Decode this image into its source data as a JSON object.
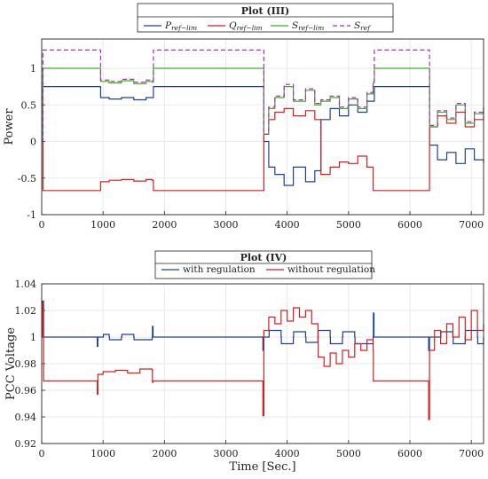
{
  "chart_data": [
    {
      "type": "line",
      "title": "Plot (III)",
      "ylabel": "Power",
      "xlabel": "",
      "xlim": [
        0,
        7200
      ],
      "ylim": [
        -1,
        1.4
      ],
      "xticks": [
        "0",
        "1000",
        "2000",
        "3000",
        "4000",
        "5000",
        "6000",
        "7000"
      ],
      "yticks": [
        "-1",
        "-0.5",
        "0",
        "0.5",
        "1"
      ],
      "grid": true,
      "legend_position": "top-center",
      "series": [
        {
          "name": "P",
          "sub": "ref−lim",
          "color": "#1f3f9e",
          "dash": false,
          "x": [
            0,
            20,
            900,
            960,
            1100,
            1300,
            1500,
            1700,
            1800,
            1820,
            3600,
            3620,
            3700,
            3800,
            3950,
            4100,
            4300,
            4450,
            4550,
            4700,
            4850,
            5000,
            5150,
            5300,
            5400,
            5420,
            6300,
            6320,
            6450,
            6600,
            6750,
            6900,
            7050,
            7200
          ],
          "y": [
            0,
            0.75,
            0.75,
            0.6,
            0.58,
            0.6,
            0.57,
            0.6,
            0.6,
            0.75,
            0.75,
            0,
            -0.35,
            -0.45,
            -0.6,
            -0.35,
            -0.55,
            -0.4,
            0.3,
            0.45,
            0.35,
            0.5,
            0.4,
            0.55,
            0.55,
            0.75,
            0.75,
            -0.05,
            -0.25,
            -0.15,
            -0.3,
            -0.1,
            -0.25,
            -0.3
          ]
        },
        {
          "name": "Q",
          "sub": "ref−lim",
          "color": "#d62020",
          "dash": false,
          "x": [
            0,
            20,
            900,
            960,
            1100,
            1300,
            1500,
            1700,
            1800,
            1820,
            3600,
            3620,
            3700,
            3800,
            3950,
            4100,
            4300,
            4450,
            4550,
            4700,
            4850,
            5000,
            5150,
            5300,
            5400,
            5420,
            6300,
            6320,
            6450,
            6600,
            6750,
            6900,
            7050,
            7200
          ],
          "y": [
            0,
            -0.67,
            -0.67,
            -0.55,
            -0.53,
            -0.52,
            -0.54,
            -0.52,
            -0.53,
            -0.67,
            -0.67,
            0.1,
            0.3,
            0.4,
            0.45,
            0.35,
            0.42,
            0.3,
            -0.45,
            -0.35,
            -0.28,
            -0.3,
            -0.2,
            -0.35,
            -0.67,
            -0.67,
            -0.67,
            0.2,
            0.35,
            0.25,
            0.4,
            0.2,
            0.3,
            0.35
          ]
        },
        {
          "name": "S",
          "sub": "ref−lim",
          "color": "#3cb028",
          "dash": false,
          "x": [
            0,
            20,
            900,
            960,
            1100,
            1300,
            1500,
            1700,
            1800,
            1820,
            3600,
            3620,
            3700,
            3800,
            3950,
            4100,
            4300,
            4450,
            4550,
            4700,
            4850,
            5000,
            5150,
            5300,
            5400,
            5420,
            6300,
            6320,
            6450,
            6600,
            6750,
            6900,
            7050,
            7200
          ],
          "y": [
            0,
            1.0,
            1.0,
            0.82,
            0.8,
            0.83,
            0.79,
            0.82,
            0.81,
            1.0,
            1.0,
            0.1,
            0.45,
            0.6,
            0.75,
            0.55,
            0.7,
            0.5,
            0.55,
            0.6,
            0.45,
            0.58,
            0.45,
            0.65,
            0.8,
            1.0,
            1.0,
            0.2,
            0.4,
            0.3,
            0.5,
            0.25,
            0.38,
            0.45
          ]
        },
        {
          "name": "S",
          "sub": "ref",
          "color": "#b02cb0",
          "dash": true,
          "x": [
            0,
            20,
            900,
            960,
            1100,
            1300,
            1500,
            1700,
            1800,
            1820,
            3600,
            3620,
            3700,
            3800,
            3950,
            4100,
            4300,
            4450,
            4550,
            4700,
            4850,
            5000,
            5150,
            5300,
            5400,
            5420,
            6300,
            6320,
            6450,
            6600,
            6750,
            6900,
            7050,
            7200
          ],
          "y": [
            0,
            1.25,
            1.25,
            0.84,
            0.82,
            0.85,
            0.81,
            0.84,
            0.83,
            1.25,
            1.25,
            0.1,
            0.47,
            0.62,
            0.78,
            0.57,
            0.72,
            0.52,
            0.57,
            0.62,
            0.47,
            0.6,
            0.47,
            0.67,
            0.82,
            1.25,
            1.25,
            0.22,
            0.42,
            0.32,
            0.52,
            0.27,
            0.4,
            0.47
          ]
        }
      ]
    },
    {
      "type": "line",
      "title": "Plot (IV)",
      "ylabel": "PCC Voltage",
      "xlabel": "Time [Sec.]",
      "xlim": [
        0,
        7200
      ],
      "ylim": [
        0.92,
        1.04
      ],
      "xticks": [
        "0",
        "1000",
        "2000",
        "3000",
        "4000",
        "5000",
        "6000",
        "7000"
      ],
      "yticks": [
        "0.92",
        "0.94",
        "0.96",
        "0.98",
        "1",
        "1.02",
        "1.04"
      ],
      "grid": true,
      "legend_position": "top-center",
      "series": [
        {
          "name": "with regulation",
          "color": "#1f3f9e",
          "dash": false,
          "x": [
            0,
            10,
            30,
            900,
            905,
            915,
            1000,
            1005,
            1100,
            1105,
            1300,
            1305,
            1500,
            1505,
            1800,
            1805,
            1815,
            3600,
            3605,
            3620,
            3700,
            3705,
            3900,
            3905,
            4100,
            4105,
            4300,
            4305,
            4500,
            4505,
            4700,
            4705,
            4900,
            4905,
            5100,
            5105,
            5400,
            5405,
            5415,
            6300,
            6305,
            6320,
            6500,
            6505,
            6700,
            6705,
            6900,
            6905,
            7100,
            7105,
            7200
          ],
          "y": [
            1.0,
            1.027,
            1.0,
            1.0,
            0.993,
            1.0,
            1.0,
            1.002,
            1.0,
            0.998,
            1.0,
            1.002,
            1.0,
            0.998,
            1.0,
            1.008,
            1.0,
            1.0,
            0.99,
            1.0,
            1.0,
            1.005,
            1.0,
            0.995,
            1.0,
            1.004,
            1.0,
            0.996,
            1.0,
            1.005,
            1.0,
            0.995,
            1.0,
            1.004,
            1.0,
            0.995,
            1.0,
            1.018,
            1.0,
            1.0,
            0.99,
            1.0,
            1.0,
            1.004,
            1.0,
            0.995,
            1.0,
            1.005,
            1.0,
            0.995,
            1.0
          ]
        },
        {
          "name": "without regulation",
          "color": "#d62020",
          "dash": false,
          "x": [
            0,
            10,
            30,
            900,
            905,
            915,
            1000,
            1200,
            1400,
            1600,
            1800,
            1805,
            1815,
            3600,
            3605,
            3620,
            3700,
            3800,
            3900,
            4000,
            4100,
            4200,
            4300,
            4400,
            4500,
            4505,
            4600,
            4700,
            4800,
            4900,
            5000,
            5100,
            5200,
            5300,
            5400,
            5405,
            5415,
            6300,
            6305,
            6320,
            6400,
            6500,
            6600,
            6700,
            6800,
            6900,
            7000,
            7100,
            7200
          ],
          "y": [
            1.0,
            1.025,
            0.967,
            0.967,
            0.957,
            0.972,
            0.974,
            0.975,
            0.973,
            0.976,
            0.975,
            0.966,
            0.967,
            0.967,
            0.941,
            1.005,
            1.015,
            1.01,
            1.02,
            1.012,
            1.022,
            1.015,
            1.02,
            1.01,
            1.0,
            0.985,
            0.978,
            0.988,
            0.98,
            0.99,
            0.985,
            0.995,
            0.99,
            0.998,
            0.99,
            0.967,
            0.967,
            0.967,
            0.938,
            0.99,
            1.005,
            0.995,
            1.01,
            1.0,
            1.015,
            0.998,
            1.02,
            1.005,
            1.01
          ]
        }
      ]
    }
  ]
}
